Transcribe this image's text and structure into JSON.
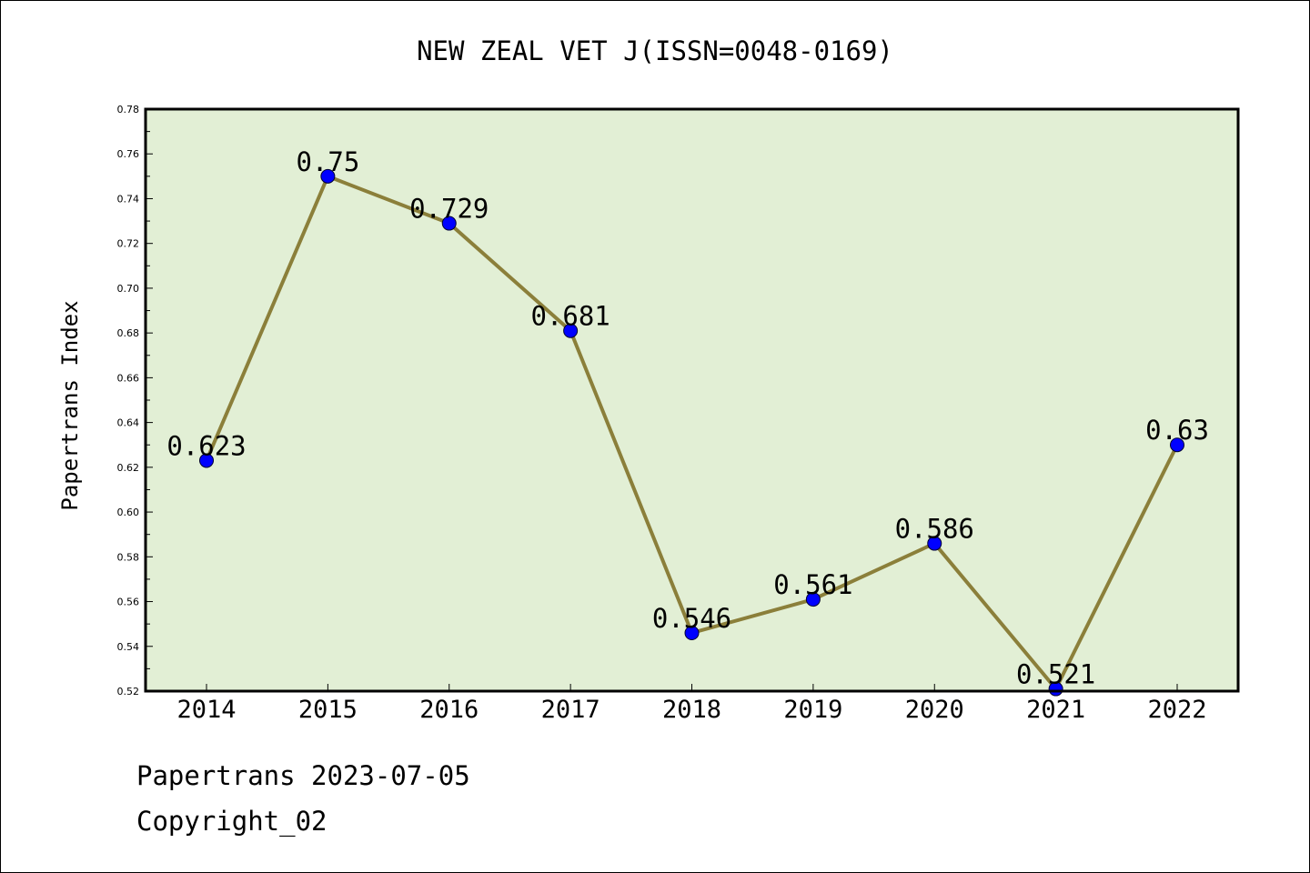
{
  "chart_data": {
    "type": "line",
    "title": "NEW ZEAL VET J(ISSN=0048-0169)",
    "xlabel": "",
    "ylabel": "Papertrans Index",
    "categories": [
      "2014",
      "2015",
      "2016",
      "2017",
      "2018",
      "2019",
      "2020",
      "2021",
      "2022"
    ],
    "values": [
      0.623,
      0.75,
      0.729,
      0.681,
      0.546,
      0.561,
      0.586,
      0.521,
      0.63
    ],
    "data_labels": [
      "0.623",
      "0.75",
      "0.729",
      "0.681",
      "0.546",
      "0.561",
      "0.586",
      "0.521",
      "0.63"
    ],
    "ylim": [
      0.52,
      0.78
    ],
    "yticks": [
      "0.52",
      "0.54",
      "0.56",
      "0.58",
      "0.60",
      "0.62",
      "0.64",
      "0.66",
      "0.68",
      "0.70",
      "0.72",
      "0.74",
      "0.76",
      "0.78"
    ],
    "grid": false,
    "colors": {
      "plot_background": "#e2efd5",
      "line": "#8b7f3a",
      "marker": "#0000ff"
    }
  },
  "footer": {
    "line1": "Papertrans 2023-07-05",
    "line2": "Copyright_02"
  }
}
